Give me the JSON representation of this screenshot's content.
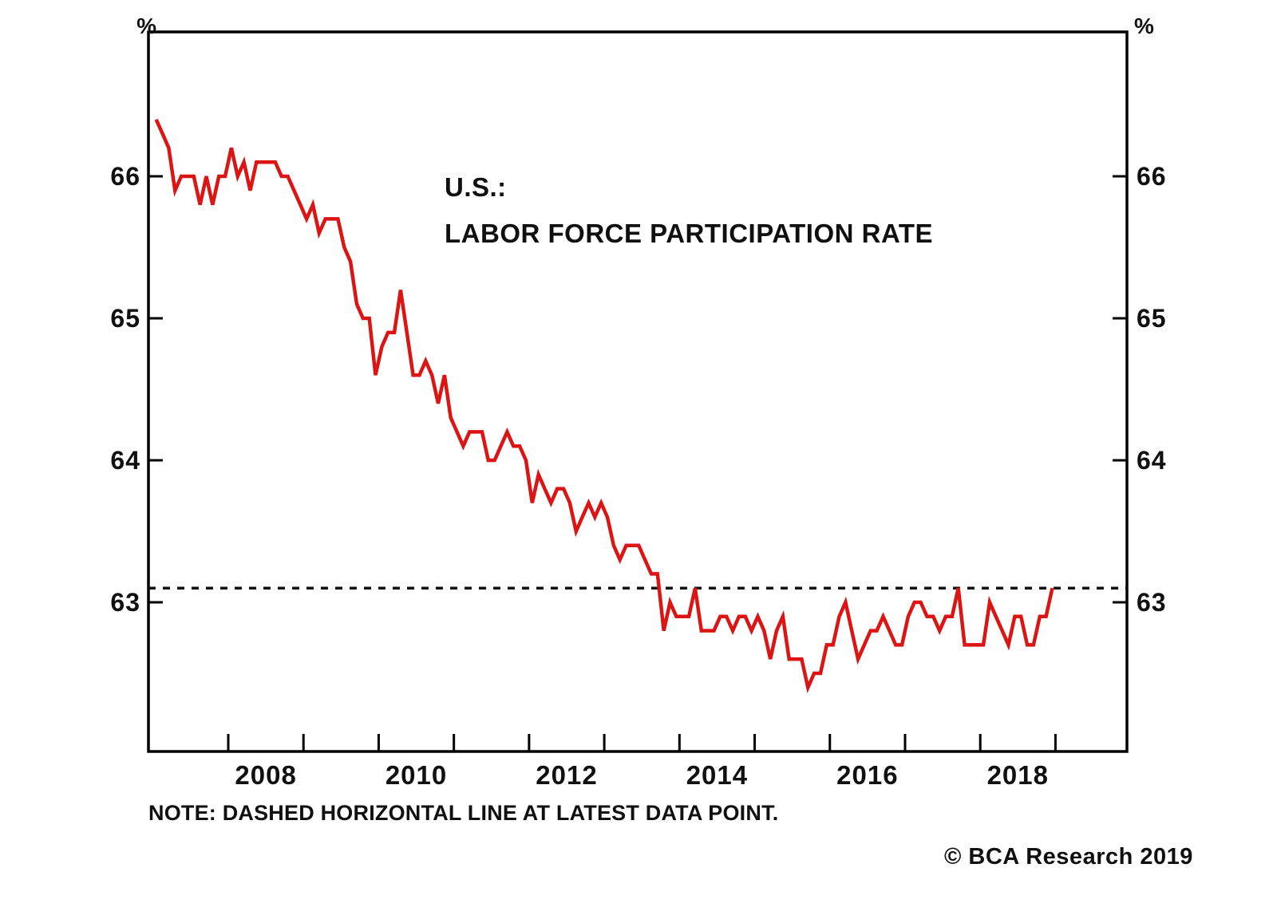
{
  "page": {
    "background": "#ffffff",
    "text_color": "#101010",
    "axis_color": "#000000"
  },
  "chart_data": {
    "type": "line",
    "title_line1": "U.S.:",
    "title_line2": "LABOR FORCE PARTICIPATION RATE",
    "unit_label": "%",
    "y_ticks": [
      66,
      65,
      64,
      63
    ],
    "x_tick_years": [
      2008,
      2009,
      2010,
      2011,
      2012,
      2013,
      2014,
      2015,
      2016,
      2017,
      2018,
      2019
    ],
    "x_labels": [
      "2008",
      "2010",
      "2012",
      "2014",
      "2016",
      "2018"
    ],
    "y_range": [
      61.95,
      67.0
    ],
    "x_range": [
      2006.95,
      2019.95
    ],
    "grid": "off",
    "legend": "none",
    "series": [
      {
        "name": "U.S. labor force participation rate",
        "color": "#dc1414",
        "frequency": "monthly",
        "start": "2007-01",
        "end": "2018-12",
        "values": [
          66.4,
          66.3,
          66.2,
          65.9,
          66.0,
          66.0,
          66.0,
          65.8,
          66.0,
          65.8,
          66.0,
          66.0,
          66.2,
          66.0,
          66.1,
          65.9,
          66.1,
          66.1,
          66.1,
          66.1,
          66.0,
          66.0,
          65.9,
          65.8,
          65.7,
          65.8,
          65.6,
          65.7,
          65.7,
          65.7,
          65.5,
          65.4,
          65.1,
          65.0,
          65.0,
          64.6,
          64.8,
          64.9,
          64.9,
          65.2,
          64.9,
          64.6,
          64.6,
          64.7,
          64.6,
          64.4,
          64.6,
          64.3,
          64.2,
          64.1,
          64.2,
          64.2,
          64.2,
          64.0,
          64.0,
          64.1,
          64.2,
          64.1,
          64.1,
          64.0,
          63.7,
          63.9,
          63.8,
          63.7,
          63.8,
          63.8,
          63.7,
          63.5,
          63.6,
          63.7,
          63.6,
          63.7,
          63.6,
          63.4,
          63.3,
          63.4,
          63.4,
          63.4,
          63.3,
          63.2,
          63.2,
          62.8,
          63.0,
          62.9,
          62.9,
          62.9,
          63.1,
          62.8,
          62.8,
          62.8,
          62.9,
          62.9,
          62.8,
          62.9,
          62.9,
          62.8,
          62.9,
          62.8,
          62.6,
          62.8,
          62.9,
          62.6,
          62.6,
          62.6,
          62.4,
          62.5,
          62.5,
          62.7,
          62.7,
          62.9,
          63.0,
          62.8,
          62.6,
          62.7,
          62.8,
          62.8,
          62.9,
          62.8,
          62.7,
          62.7,
          62.9,
          63.0,
          63.0,
          62.9,
          62.9,
          62.8,
          62.9,
          62.9,
          63.1,
          62.7,
          62.7,
          62.7,
          62.7,
          63.0,
          62.9,
          62.8,
          62.7,
          62.9,
          62.9,
          62.7,
          62.7,
          62.9,
          62.9,
          63.1
        ]
      }
    ],
    "reference_line": {
      "style": "dashed",
      "color": "#111111",
      "value": 63.1,
      "label": "latest data point"
    },
    "note": "NOTE: DASHED HORIZONTAL LINE AT LATEST DATA POINT.",
    "copyright": "© BCA Research 2019"
  }
}
